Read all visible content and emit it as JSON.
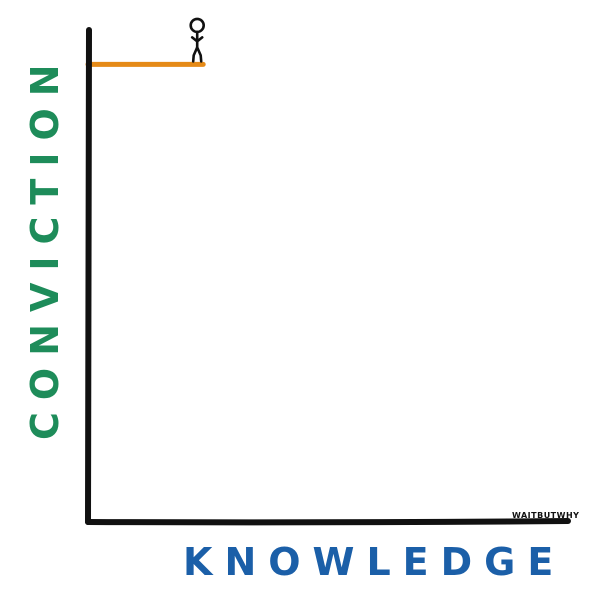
{
  "chart_data": {
    "type": "line",
    "xlabel": "KNOWLEDGE",
    "ylabel": "CONVICTION",
    "xlim": [
      0,
      1
    ],
    "ylim": [
      0,
      1
    ],
    "grid": false,
    "series": [
      {
        "x": [
          0,
          0.24
        ],
        "y": [
          0.93,
          0.93
        ],
        "color": "#E58A17",
        "marker_at_end": "stick-figure-icon"
      }
    ],
    "watermark": "WAITBUTWHY",
    "colors": {
      "axis": "#111111",
      "xlabel": "#1B5FA8",
      "ylabel": "#1E8C5A"
    }
  }
}
